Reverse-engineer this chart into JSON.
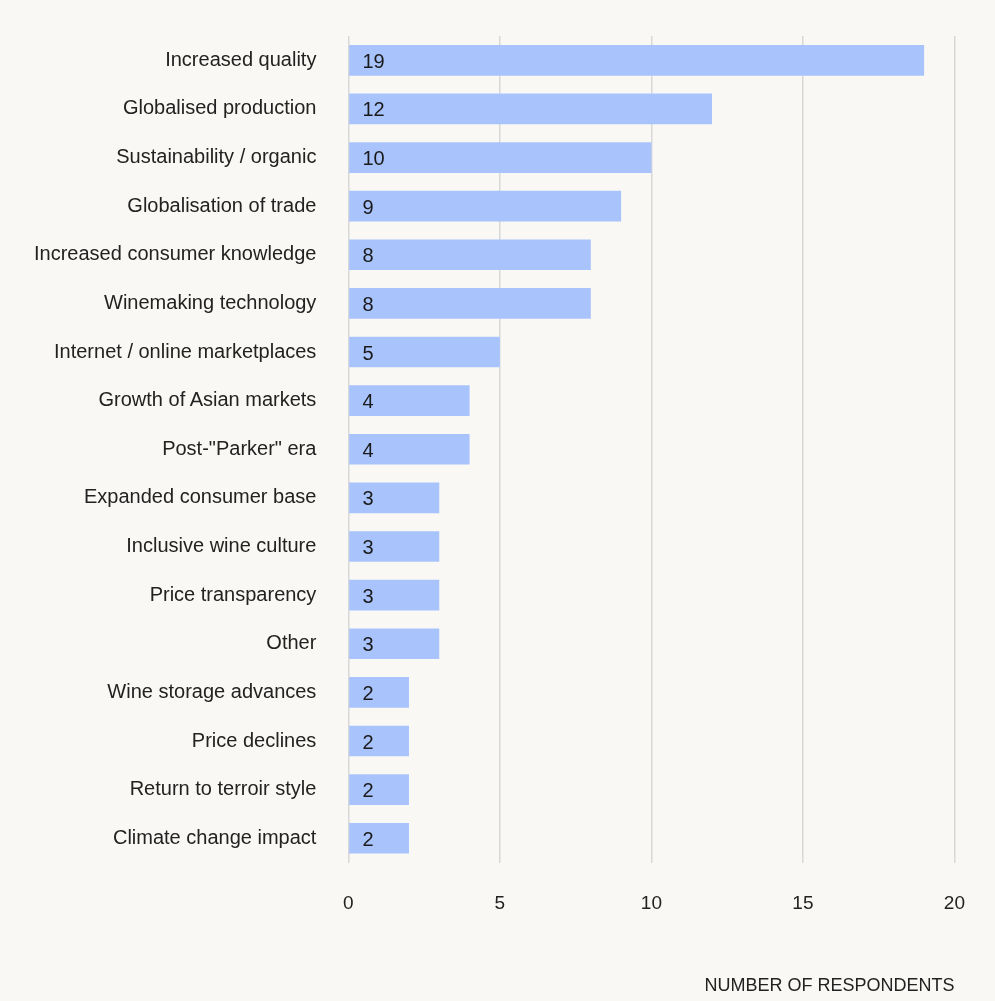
{
  "chart_data": {
    "type": "bar",
    "orientation": "horizontal",
    "xlabel": "NUMBER OF RESPONDENTS",
    "categories": [
      "Increased quality",
      "Globalised production",
      "Sustainability / organic",
      "Globalisation of trade",
      "Increased consumer knowledge",
      "Winemaking technology",
      "Internet / online marketplaces",
      "Growth of Asian markets",
      "Post-\"Parker\" era",
      "Expanded consumer base",
      "Inclusive wine culture",
      "Price transparency",
      "Other",
      "Wine storage advances",
      "Price declines",
      "Return to terroir style",
      "Climate change impact"
    ],
    "values": [
      19,
      12,
      10,
      9,
      8,
      8,
      5,
      4,
      4,
      3,
      3,
      3,
      3,
      2,
      2,
      2,
      2
    ],
    "color": "#a9c4fd",
    "xlim": [
      0,
      20
    ],
    "xticks": [
      0,
      5,
      10,
      15,
      20
    ],
    "grid": "x",
    "data_labels": true
  }
}
